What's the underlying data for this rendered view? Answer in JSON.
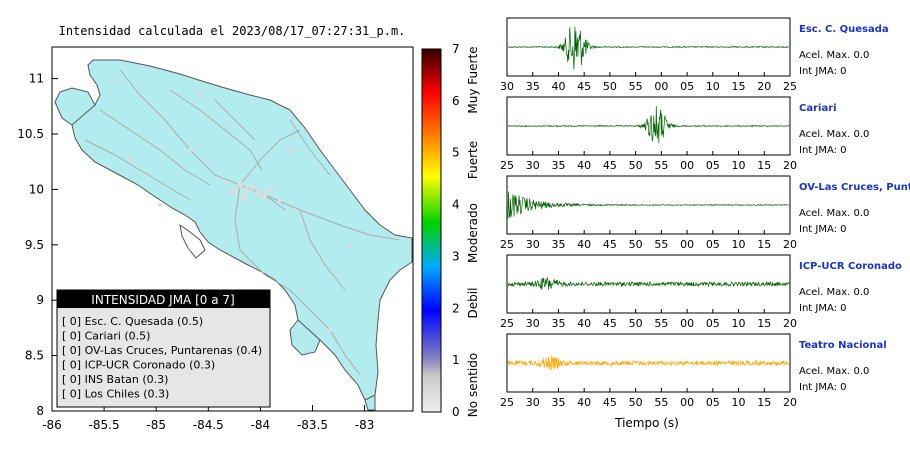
{
  "map": {
    "title": "Intensidad calculada el 2023/08/17_07:27:31_p.m.",
    "lon_ticks": [
      "-86",
      "-85.5",
      "-85",
      "-84.5",
      "-84",
      "-83.5",
      "-83"
    ],
    "lat_ticks": [
      "8",
      "8.5",
      "9",
      "9.5",
      "10",
      "10.5",
      "11"
    ],
    "colors": {
      "land": "#b3ecee",
      "border": "#555555",
      "roads": "#aaaaaa",
      "towns": "#dddddd"
    }
  },
  "colorbar": {
    "ticks": [
      "0",
      "1",
      "2",
      "3",
      "4",
      "5",
      "6",
      "7"
    ],
    "labels": [
      "No sentido",
      "Debil",
      "Moderado",
      "Fuerte",
      "Muy Fuerte"
    ]
  },
  "legend": {
    "header": "INTENSIDAD JMA [0 a 7]",
    "items": [
      "[ 0]  Esc. C. Quesada (0.5)",
      "[ 0]  Cariari (0.5)",
      "[ 0]  OV-Las Cruces, Puntarenas (0.4)",
      "[ 0]  ICP-UCR Coronado (0.3)",
      "[ 0]  INS Batan (0.3)",
      "[ 0]  Los Chiles (0.3)"
    ]
  },
  "stations": [
    {
      "name": "Esc. C. Quesada",
      "accel": "Acel. Max. 0.0",
      "int": "Int JMA: 0",
      "color": "#006400",
      "ticks": [
        "30",
        "35",
        "40",
        "45",
        "50",
        "55",
        "00",
        "05",
        "10",
        "15",
        "20",
        "25"
      ]
    },
    {
      "name": "Cariari",
      "accel": "Acel. Max. 0.0",
      "int": "Int JMA: 0",
      "color": "#006400",
      "ticks": [
        "25",
        "30",
        "35",
        "40",
        "45",
        "50",
        "55",
        "00",
        "05",
        "10",
        "15",
        "20"
      ]
    },
    {
      "name": "OV-Las Cruces, Puntar",
      "accel": "Acel. Max. 0.0",
      "int": "Int JMA: 0",
      "color": "#006400",
      "ticks": [
        "25",
        "30",
        "35",
        "40",
        "45",
        "50",
        "55",
        "00",
        "05",
        "10",
        "15",
        "20"
      ]
    },
    {
      "name": "ICP-UCR Coronado",
      "accel": "Acel. Max. 0.0",
      "int": "Int JMA: 0",
      "color": "#006400",
      "ticks": [
        "25",
        "30",
        "35",
        "40",
        "45",
        "50",
        "55",
        "00",
        "05",
        "10",
        "15",
        "20"
      ]
    },
    {
      "name": "Teatro Nacional",
      "accel": "Acel. Max. 0.0",
      "int": "Int JMA: 0",
      "color": "#ffa500",
      "ticks": [
        "25",
        "30",
        "35",
        "40",
        "45",
        "50",
        "55",
        "00",
        "05",
        "10",
        "15",
        "20"
      ]
    }
  ],
  "xlabel": "Tiempo (s)",
  "chart_data": [
    {
      "type": "map",
      "title": "Intensidad calculada el 2023/08/17_07:27:31_p.m.",
      "xlim": [
        -86,
        -82.6
      ],
      "ylim": [
        8,
        11.3
      ],
      "xticks": [
        -86,
        -85.5,
        -85,
        -84.5,
        -84,
        -83.5,
        -83
      ],
      "yticks": [
        8,
        8.5,
        9,
        9.5,
        10,
        10.5,
        11
      ]
    },
    {
      "type": "heatmap",
      "title": "colorbar",
      "range": [
        0,
        7
      ],
      "ticks": [
        0,
        1,
        2,
        3,
        4,
        5,
        6,
        7
      ],
      "labels": [
        "No sentido",
        "Debil",
        "Moderado",
        "Fuerte",
        "Muy Fuerte"
      ],
      "colors": [
        "#f0f0f0",
        "#8080c0",
        "#0000ff",
        "#00aaff",
        "#00d000",
        "#ffff00",
        "#ff8000",
        "#ff0000",
        "#330000"
      ]
    },
    {
      "type": "line",
      "xlabel": "Tiempo (s)",
      "series": [
        {
          "name": "Esc. C. Quesada",
          "burst_position": 0.24,
          "burst_strength": 6,
          "noise": 0.12
        },
        {
          "name": "Cariari",
          "burst_position": 0.53,
          "burst_strength": 4.5,
          "noise": 0.12
        },
        {
          "name": "OV-Las Cruces, Puntar",
          "burst_position": 0.0,
          "burst_strength": 3.5,
          "noise": 0.1
        },
        {
          "name": "ICP-UCR Coronado",
          "burst_position": 0.14,
          "burst_strength": 1.2,
          "noise": 0.45
        },
        {
          "name": "Teatro Nacional",
          "burst_position": 0.15,
          "burst_strength": 1.2,
          "noise": 0.5
        }
      ]
    }
  ]
}
